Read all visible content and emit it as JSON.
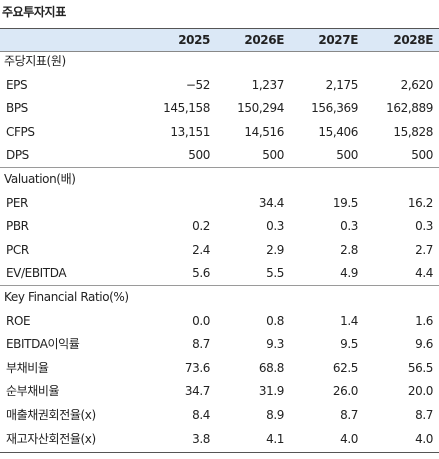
{
  "title": "주요투자지표",
  "table": {
    "columns": [
      "2025",
      "2026E",
      "2027E",
      "2028E"
    ],
    "sections": [
      {
        "label": "주당지표(원)",
        "rows": [
          {
            "label": "EPS",
            "values": [
              "−52",
              "1,237",
              "2,175",
              "2,620"
            ]
          },
          {
            "label": "BPS",
            "values": [
              "145,158",
              "150,294",
              "156,369",
              "162,889"
            ]
          },
          {
            "label": "CFPS",
            "values": [
              "13,151",
              "14,516",
              "15,406",
              "15,828"
            ]
          },
          {
            "label": "DPS",
            "values": [
              "500",
              "500",
              "500",
              "500"
            ]
          }
        ]
      },
      {
        "label": "Valuation(배)",
        "rows": [
          {
            "label": "PER",
            "values": [
              null,
              "34.4",
              "19.5",
              "16.2"
            ]
          },
          {
            "label": "PBR",
            "values": [
              "0.2",
              "0.3",
              "0.3",
              "0.3"
            ]
          },
          {
            "label": "PCR",
            "values": [
              "2.4",
              "2.9",
              "2.8",
              "2.7"
            ]
          },
          {
            "label": "EV/EBITDA",
            "values": [
              "5.6",
              "5.5",
              "4.9",
              "4.4"
            ]
          }
        ]
      },
      {
        "label": "Key Financial Ratio(%)",
        "rows": [
          {
            "label": "ROE",
            "values": [
              "0.0",
              "0.8",
              "1.4",
              "1.6"
            ]
          },
          {
            "label": "EBITDA이익률",
            "values": [
              "8.7",
              "9.3",
              "9.5",
              "9.6"
            ]
          },
          {
            "label": "부채비율",
            "values": [
              "73.6",
              "68.8",
              "62.5",
              "56.5"
            ]
          },
          {
            "label": "순부채비율",
            "values": [
              "34.7",
              "31.9",
              "26.0",
              "20.0"
            ]
          },
          {
            "label": "매출채권회전율(x)",
            "values": [
              "8.4",
              "8.9",
              "8.7",
              "8.7"
            ]
          },
          {
            "label": "재고자산회전율(x)",
            "values": [
              "3.8",
              "4.1",
              "4.0",
              "4.0"
            ]
          }
        ]
      }
    ]
  }
}
